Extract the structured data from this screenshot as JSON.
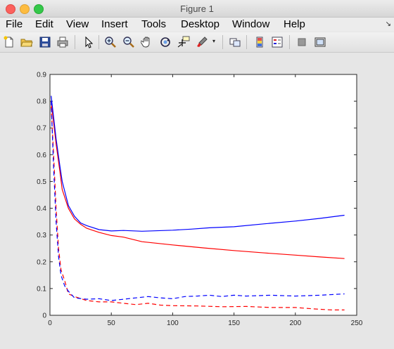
{
  "window": {
    "title": "Figure 1",
    "controls": [
      "close",
      "minimize",
      "maximize"
    ]
  },
  "menu": {
    "items": [
      "File",
      "Edit",
      "View",
      "Insert",
      "Tools",
      "Desktop",
      "Window",
      "Help"
    ],
    "corner_glyph": "↘"
  },
  "toolbar": {
    "icons": [
      "new-figure-icon",
      "open-file-icon",
      "save-icon",
      "print-icon",
      "pointer-icon",
      "zoom-in-icon",
      "zoom-out-icon",
      "pan-hand-icon",
      "rotate-3d-icon",
      "data-cursor-icon",
      "brush-icon",
      "brush-dropdown-icon",
      "link-plot-icon",
      "insert-colorbar-icon",
      "insert-legend-icon",
      "hide-plot-tools-icon",
      "show-plot-tools-icon"
    ]
  },
  "colors": {
    "red": "#ff0000",
    "blue": "#0000ff",
    "figure_bg": "#e6e6e6"
  },
  "chart_data": {
    "type": "line",
    "title": "",
    "xlabel": "",
    "ylabel": "",
    "xlim": [
      0,
      250
    ],
    "ylim": [
      0,
      0.9
    ],
    "xticks": [
      "0",
      "50",
      "100",
      "150",
      "200",
      "250"
    ],
    "yticks": [
      "0",
      "0.1",
      "0.2",
      "0.3",
      "0.4",
      "0.5",
      "0.6",
      "0.7",
      "0.8",
      "0.9"
    ],
    "grid": false,
    "legend": "none",
    "series": [
      {
        "color": "red",
        "style": "solid",
        "points": [
          [
            1,
            0.8
          ],
          [
            3,
            0.72
          ],
          [
            5,
            0.64
          ],
          [
            8,
            0.54
          ],
          [
            10,
            0.47
          ],
          [
            15,
            0.4
          ],
          [
            20,
            0.36
          ],
          [
            25,
            0.34
          ],
          [
            30,
            0.325
          ],
          [
            40,
            0.31
          ],
          [
            50,
            0.298
          ],
          [
            60,
            0.292
          ],
          [
            75,
            0.275
          ],
          [
            100,
            0.263
          ],
          [
            125,
            0.252
          ],
          [
            150,
            0.242
          ],
          [
            175,
            0.233
          ],
          [
            200,
            0.225
          ],
          [
            220,
            0.218
          ],
          [
            240,
            0.212
          ]
        ]
      },
      {
        "color": "blue",
        "style": "solid",
        "points": [
          [
            1,
            0.82
          ],
          [
            3,
            0.74
          ],
          [
            5,
            0.66
          ],
          [
            8,
            0.56
          ],
          [
            10,
            0.5
          ],
          [
            15,
            0.41
          ],
          [
            20,
            0.37
          ],
          [
            25,
            0.345
          ],
          [
            30,
            0.335
          ],
          [
            40,
            0.32
          ],
          [
            50,
            0.315
          ],
          [
            60,
            0.317
          ],
          [
            75,
            0.314
          ],
          [
            100,
            0.318
          ],
          [
            115,
            0.322
          ],
          [
            130,
            0.327
          ],
          [
            150,
            0.331
          ],
          [
            175,
            0.342
          ],
          [
            200,
            0.352
          ],
          [
            220,
            0.362
          ],
          [
            240,
            0.374
          ]
        ]
      },
      {
        "color": "red",
        "style": "dashed",
        "points": [
          [
            1,
            0.78
          ],
          [
            3,
            0.6
          ],
          [
            5,
            0.4
          ],
          [
            7,
            0.25
          ],
          [
            9,
            0.17
          ],
          [
            12,
            0.13
          ],
          [
            15,
            0.08
          ],
          [
            20,
            0.07
          ],
          [
            30,
            0.055
          ],
          [
            40,
            0.05
          ],
          [
            50,
            0.05
          ],
          [
            60,
            0.045
          ],
          [
            70,
            0.04
          ],
          [
            80,
            0.045
          ],
          [
            90,
            0.038
          ],
          [
            100,
            0.036
          ],
          [
            120,
            0.035
          ],
          [
            140,
            0.032
          ],
          [
            160,
            0.033
          ],
          [
            180,
            0.029
          ],
          [
            200,
            0.029
          ],
          [
            215,
            0.024
          ],
          [
            230,
            0.02
          ],
          [
            240,
            0.02
          ]
        ]
      },
      {
        "color": "blue",
        "style": "dashed",
        "points": [
          [
            1,
            0.8
          ],
          [
            3,
            0.55
          ],
          [
            5,
            0.35
          ],
          [
            7,
            0.22
          ],
          [
            9,
            0.15
          ],
          [
            12,
            0.11
          ],
          [
            15,
            0.09
          ],
          [
            20,
            0.065
          ],
          [
            30,
            0.06
          ],
          [
            40,
            0.062
          ],
          [
            50,
            0.055
          ],
          [
            60,
            0.06
          ],
          [
            70,
            0.065
          ],
          [
            80,
            0.07
          ],
          [
            90,
            0.065
          ],
          [
            100,
            0.062
          ],
          [
            110,
            0.07
          ],
          [
            120,
            0.072
          ],
          [
            130,
            0.075
          ],
          [
            140,
            0.07
          ],
          [
            150,
            0.075
          ],
          [
            160,
            0.072
          ],
          [
            180,
            0.075
          ],
          [
            200,
            0.072
          ],
          [
            220,
            0.075
          ],
          [
            240,
            0.08
          ]
        ]
      }
    ]
  }
}
